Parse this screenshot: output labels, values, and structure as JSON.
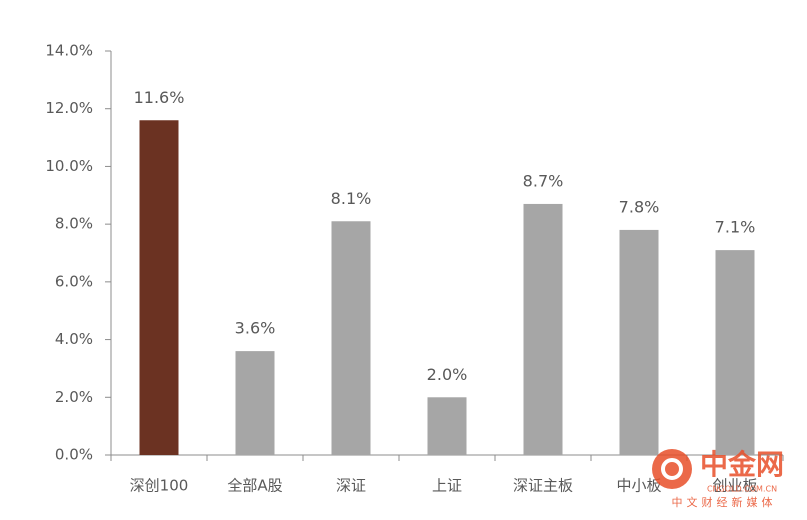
{
  "chart_data": {
    "type": "bar",
    "categories": [
      "深创100",
      "全部A股",
      "深证",
      "上证",
      "深证主板",
      "中小板",
      "创业板"
    ],
    "values": [
      11.6,
      3.6,
      8.1,
      2.0,
      8.7,
      7.8,
      7.1
    ],
    "value_labels": [
      "11.6%",
      "3.6%",
      "8.1%",
      "2.0%",
      "8.7%",
      "7.8%",
      "7.1%"
    ],
    "colors": [
      "#6b3222",
      "#a6a6a6",
      "#a6a6a6",
      "#a6a6a6",
      "#a6a6a6",
      "#a6a6a6",
      "#a6a6a6"
    ],
    "ylim": [
      0,
      14
    ],
    "yticks": [
      {
        "value": 0,
        "label": "0.0%"
      },
      {
        "value": 2,
        "label": "2.0%"
      },
      {
        "value": 4,
        "label": "4.0%"
      },
      {
        "value": 6,
        "label": "6.0%"
      },
      {
        "value": 8,
        "label": "8.0%"
      },
      {
        "value": 10,
        "label": "10.0%"
      },
      {
        "value": 12,
        "label": "12.0%"
      },
      {
        "value": 14,
        "label": "14.0%"
      }
    ],
    "grid": false
  },
  "watermark": {
    "name": "中金网",
    "site": "CNGOLD.COM.CN",
    "tagline": "中文财经新媒体"
  }
}
